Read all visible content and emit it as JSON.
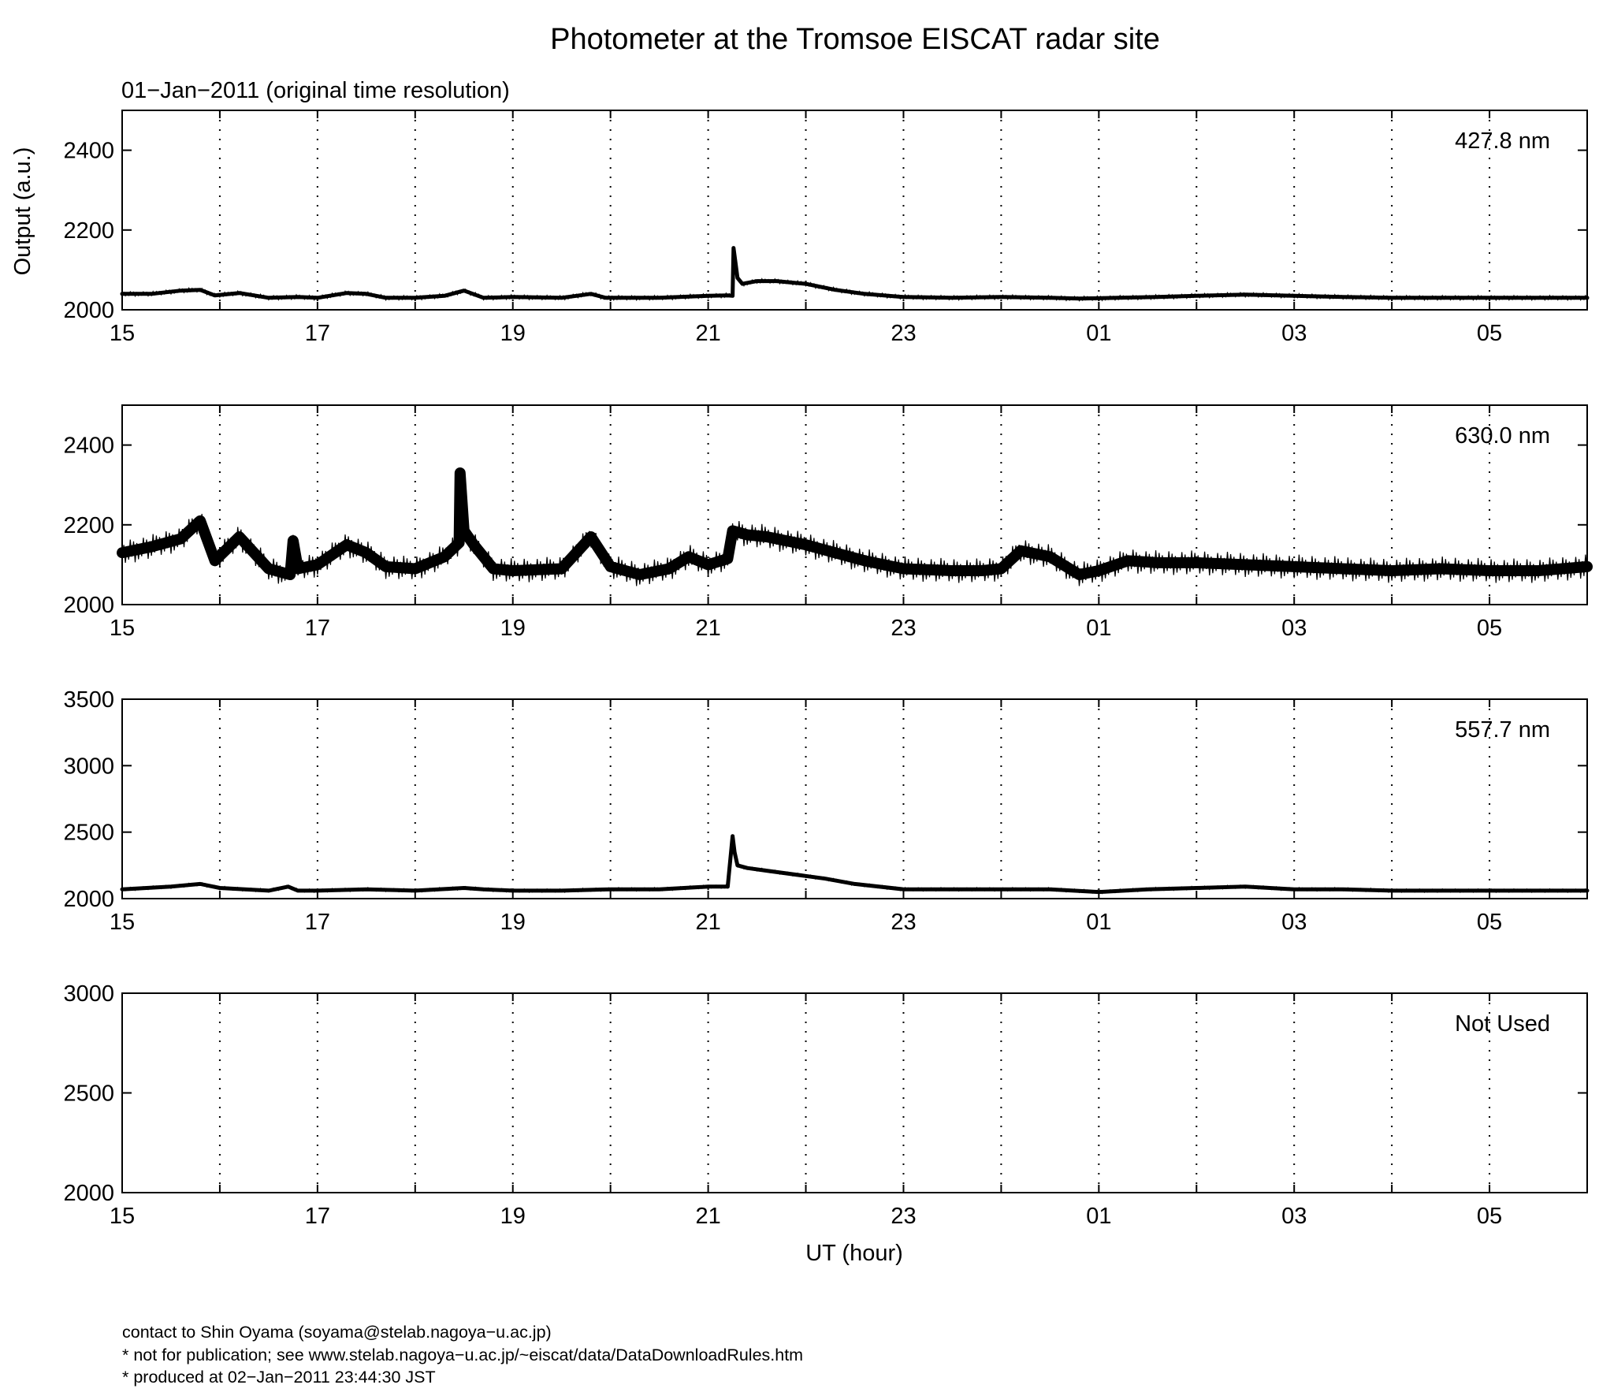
{
  "figure": {
    "title": "Photometer at the Tromsoe EISCAT radar site",
    "subtitle": "01−Jan−2011 (original time resolution)",
    "ylabel": "Output (a.u.)",
    "xlabel": "UT (hour)"
  },
  "footer": [
    "contact to Shin Oyama (soyama@stelab.nagoya−u.ac.jp)",
    "* not for publication; see www.stelab.nagoya−u.ac.jp/~eiscat/data/DataDownloadRules.htm",
    "* produced at 02−Jan−2011 23:44:30 JST"
  ],
  "chart_data": [
    {
      "type": "line",
      "label": "427.8 nm",
      "xlim": [
        15,
        30
      ],
      "ylim": [
        2000,
        2500
      ],
      "x_ticks": [
        "15",
        "17",
        "19",
        "21",
        "23",
        "01",
        "03",
        "05"
      ],
      "y_ticks": [
        "2000",
        "2200",
        "2400"
      ],
      "grid": "vertical dotted",
      "series": [
        {
          "x": [
            15,
            15.3,
            15.6,
            15.8,
            15.95,
            16.2,
            16.5,
            16.8,
            17.0,
            17.3,
            17.5,
            17.7,
            18.0,
            18.3,
            18.5,
            18.7,
            19.0,
            19.5,
            19.8,
            19.95,
            20.5,
            21.0,
            21.2,
            21.25,
            21.26,
            21.3,
            21.35,
            21.5,
            21.7,
            22.0,
            22.3,
            22.6,
            23.0,
            23.5,
            24.0,
            24.5,
            24.8,
            25.2,
            25.6,
            26.0,
            26.5,
            27.0,
            27.5,
            28.0,
            28.5,
            29.0,
            29.5,
            30.0
          ],
          "y": [
            2040,
            2040,
            2048,
            2050,
            2036,
            2042,
            2030,
            2032,
            2030,
            2042,
            2040,
            2030,
            2030,
            2035,
            2048,
            2030,
            2032,
            2030,
            2040,
            2030,
            2030,
            2035,
            2036,
            2035,
            2155,
            2080,
            2065,
            2072,
            2072,
            2065,
            2050,
            2040,
            2032,
            2030,
            2032,
            2030,
            2028,
            2030,
            2032,
            2035,
            2038,
            2035,
            2032,
            2030,
            2030,
            2030,
            2030,
            2030
          ]
        }
      ]
    },
    {
      "type": "line",
      "label": "630.0 nm",
      "xlim": [
        15,
        30
      ],
      "ylim": [
        2000,
        2500
      ],
      "x_ticks": [
        "15",
        "17",
        "19",
        "21",
        "23",
        "01",
        "03",
        "05"
      ],
      "y_ticks": [
        "2000",
        "2200",
        "2400"
      ],
      "grid": "vertical dotted",
      "series": [
        {
          "x": [
            15,
            15.3,
            15.6,
            15.8,
            15.95,
            16.2,
            16.5,
            16.72,
            16.75,
            16.8,
            17.0,
            17.3,
            17.5,
            17.7,
            18.0,
            18.3,
            18.45,
            18.46,
            18.5,
            18.6,
            18.8,
            19.0,
            19.5,
            19.8,
            20.0,
            20.3,
            20.6,
            20.8,
            21.0,
            21.2,
            21.25,
            21.4,
            21.6,
            22.0,
            22.3,
            22.6,
            23.0,
            23.5,
            23.8,
            24.0,
            24.2,
            24.5,
            24.8,
            25.0,
            25.3,
            25.6,
            26.0,
            26.5,
            27.0,
            27.5,
            28.0,
            28.5,
            29.0,
            29.5,
            30.0
          ],
          "y": [
            2130,
            2145,
            2165,
            2210,
            2110,
            2170,
            2090,
            2075,
            2160,
            2090,
            2100,
            2150,
            2130,
            2095,
            2090,
            2120,
            2155,
            2330,
            2185,
            2150,
            2090,
            2085,
            2090,
            2170,
            2095,
            2075,
            2090,
            2120,
            2100,
            2115,
            2185,
            2175,
            2170,
            2150,
            2130,
            2110,
            2090,
            2085,
            2085,
            2090,
            2135,
            2120,
            2075,
            2085,
            2110,
            2105,
            2105,
            2100,
            2095,
            2090,
            2085,
            2090,
            2085,
            2085,
            2095
          ]
        }
      ]
    },
    {
      "type": "line",
      "label": "557.7 nm",
      "xlim": [
        15,
        30
      ],
      "ylim": [
        2000,
        3500
      ],
      "x_ticks": [
        "15",
        "17",
        "19",
        "21",
        "23",
        "01",
        "03",
        "05"
      ],
      "y_ticks": [
        "2000",
        "2500",
        "3000",
        "3500"
      ],
      "grid": "vertical dotted",
      "series": [
        {
          "x": [
            15,
            15.5,
            15.8,
            16.0,
            16.5,
            16.7,
            16.8,
            17.0,
            17.5,
            18.0,
            18.5,
            18.7,
            19.0,
            19.5,
            20.0,
            20.5,
            21.0,
            21.2,
            21.25,
            21.27,
            21.3,
            21.4,
            21.6,
            22.0,
            22.2,
            22.5,
            23.0,
            23.5,
            24.0,
            24.5,
            25.0,
            25.5,
            26.0,
            26.5,
            27.0,
            27.5,
            28.0,
            28.5,
            29.0,
            29.5,
            30.0
          ],
          "y": [
            2070,
            2090,
            2110,
            2080,
            2060,
            2090,
            2060,
            2060,
            2070,
            2060,
            2080,
            2070,
            2060,
            2060,
            2070,
            2070,
            2090,
            2090,
            2470,
            2350,
            2250,
            2230,
            2210,
            2170,
            2150,
            2110,
            2070,
            2070,
            2070,
            2070,
            2050,
            2070,
            2080,
            2090,
            2070,
            2070,
            2060,
            2060,
            2060,
            2060,
            2060
          ]
        }
      ]
    },
    {
      "type": "line",
      "label": "Not Used",
      "xlim": [
        15,
        30
      ],
      "ylim": [
        2000,
        3000
      ],
      "x_ticks": [
        "15",
        "17",
        "19",
        "21",
        "23",
        "01",
        "03",
        "05"
      ],
      "y_ticks": [
        "2000",
        "2500",
        "3000"
      ],
      "grid": "vertical dotted",
      "series": []
    }
  ]
}
